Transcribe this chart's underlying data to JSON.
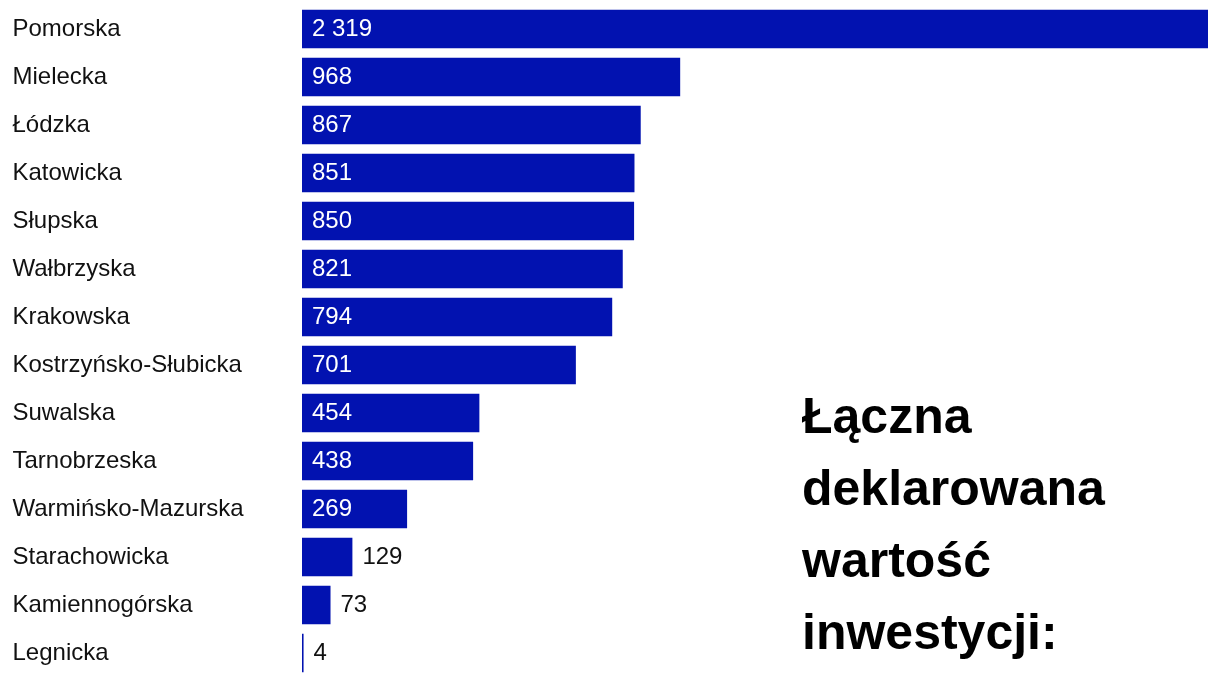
{
  "chart_data": {
    "type": "bar",
    "orientation": "horizontal",
    "title": "Łączna deklarowana wartość inwestycji:",
    "categories": [
      "Pomorska",
      "Mielecka",
      "Łódzka",
      "Katowicka",
      "Słupska",
      "Wałbrzyska",
      "Krakowska",
      "Kostrzyńsko-Słubicka",
      "Suwalska",
      "Tarnobrzeska",
      "Warmińsko-Mazurska",
      "Starachowicka",
      "Kamiennogórska",
      "Legnicka"
    ],
    "values": [
      2319,
      968,
      867,
      851,
      850,
      821,
      794,
      701,
      454,
      438,
      269,
      129,
      73,
      4
    ],
    "value_labels": [
      "2 319",
      "968",
      "867",
      "851",
      "850",
      "821",
      "794",
      "701",
      "454",
      "438",
      "269",
      "129",
      "73",
      "4"
    ],
    "color": "#0212b0"
  }
}
